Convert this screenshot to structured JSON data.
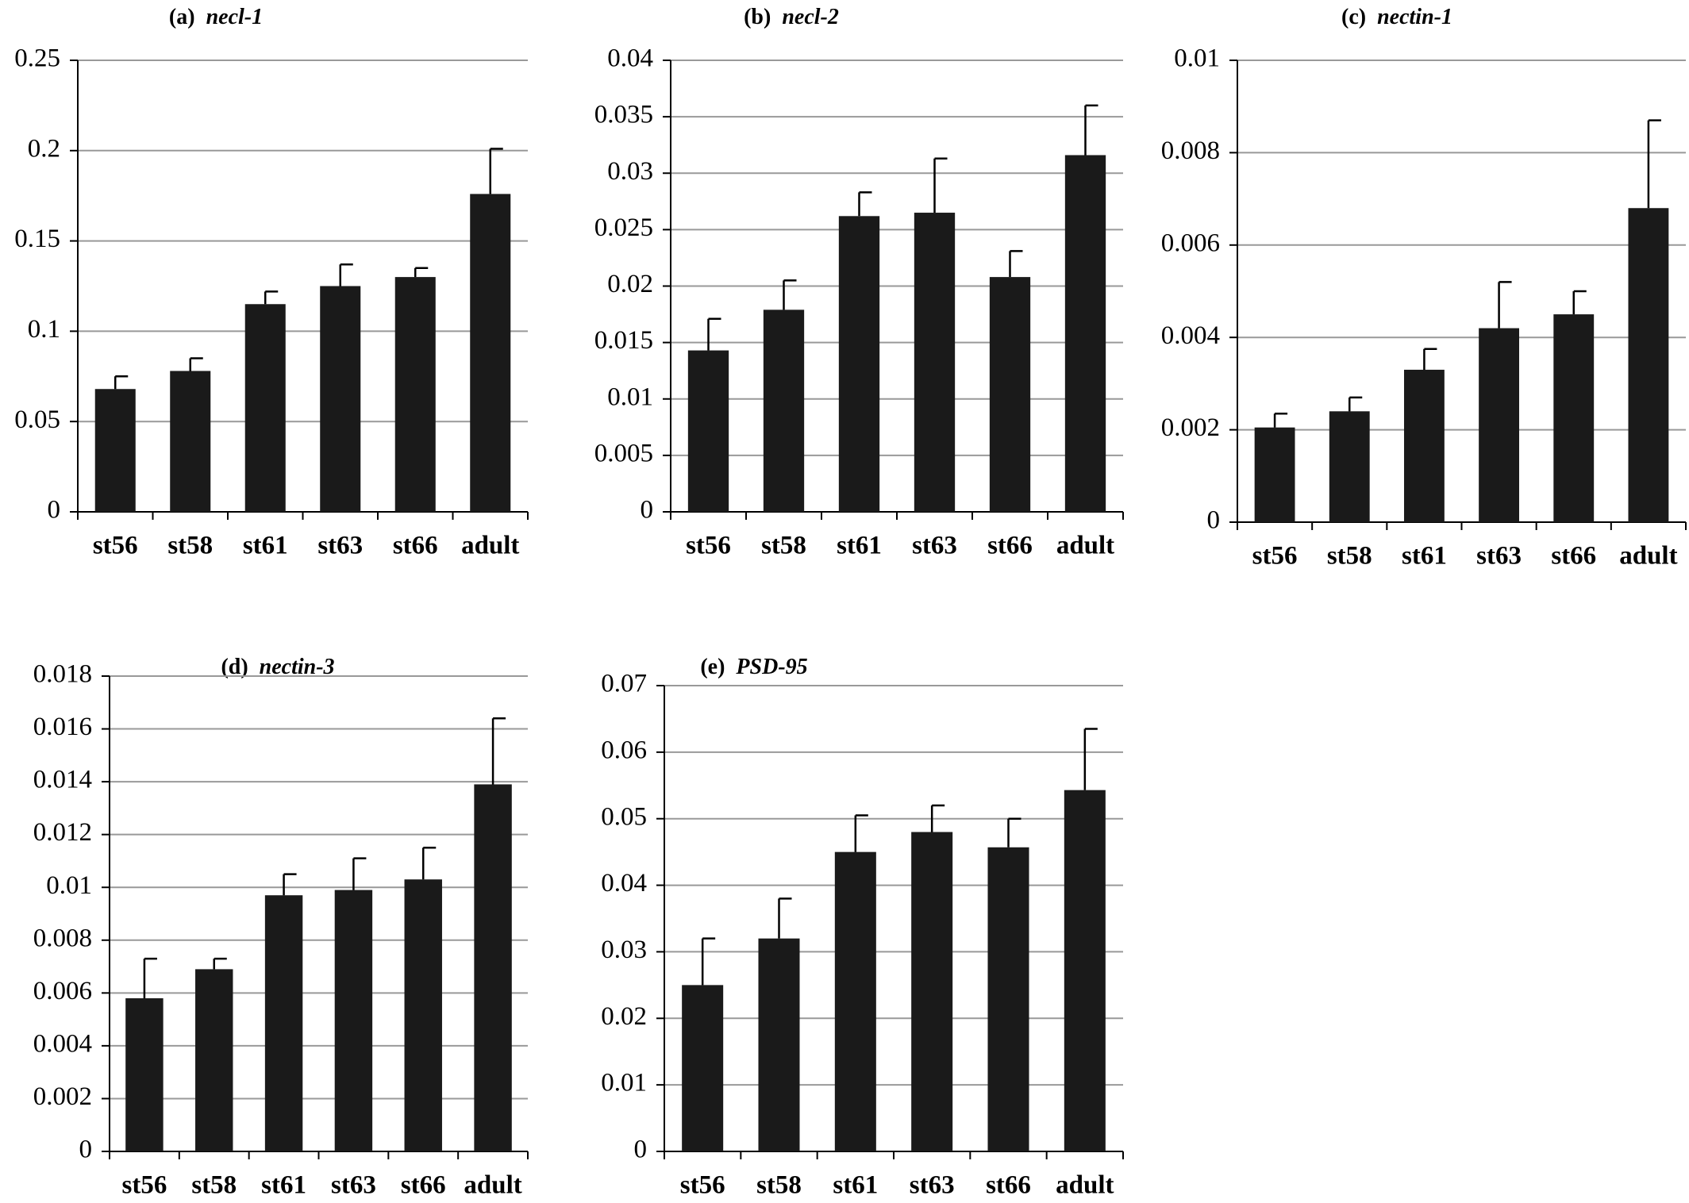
{
  "chart_data": [
    {
      "type": "bar",
      "panel": "(a)",
      "title": "necl-1",
      "categories": [
        "st56",
        "st58",
        "st61",
        "st63",
        "st66",
        "adult"
      ],
      "values": [
        0.068,
        0.078,
        0.115,
        0.125,
        0.13,
        0.176
      ],
      "errors": [
        0.007,
        0.007,
        0.007,
        0.012,
        0.005,
        0.025
      ],
      "color": "#1a1a1a",
      "ylim": [
        0,
        0.25
      ],
      "yticks": [
        0,
        0.05,
        0.1,
        0.15,
        0.2,
        0.25
      ],
      "grid": true
    },
    {
      "type": "bar",
      "panel": "(b)",
      "title": "necl-2",
      "categories": [
        "st56",
        "st58",
        "st61",
        "st63",
        "st66",
        "adult"
      ],
      "values": [
        0.0143,
        0.0179,
        0.0262,
        0.0265,
        0.0208,
        0.0316
      ],
      "errors": [
        0.0028,
        0.0026,
        0.0021,
        0.0048,
        0.0023,
        0.0044
      ],
      "color": "#1a1a1a",
      "ylim": [
        0,
        0.04
      ],
      "yticks": [
        0,
        0.005,
        0.01,
        0.015,
        0.02,
        0.025,
        0.03,
        0.035,
        0.04
      ],
      "grid": true
    },
    {
      "type": "bar",
      "panel": "(c)",
      "title": "nectin-1",
      "categories": [
        "st56",
        "st58",
        "st61",
        "st63",
        "st66",
        "adult"
      ],
      "values": [
        0.00205,
        0.0024,
        0.0033,
        0.0042,
        0.0045,
        0.0068
      ],
      "errors": [
        0.0003,
        0.0003,
        0.00045,
        0.001,
        0.0005,
        0.0019
      ],
      "color": "#1a1a1a",
      "ylim": [
        0,
        0.01
      ],
      "yticks": [
        0,
        0.002,
        0.004,
        0.006,
        0.008,
        0.01
      ],
      "grid": true
    },
    {
      "type": "bar",
      "panel": "(d)",
      "title": "nectin-3",
      "categories": [
        "st56",
        "st58",
        "st61",
        "st63",
        "st66",
        "adult"
      ],
      "values": [
        0.0058,
        0.0069,
        0.0097,
        0.0099,
        0.0103,
        0.0139
      ],
      "errors": [
        0.0015,
        0.0004,
        0.0008,
        0.0012,
        0.0012,
        0.0025
      ],
      "color": "#1a1a1a",
      "ylim": [
        0,
        0.018
      ],
      "yticks": [
        0,
        0.002,
        0.004,
        0.006,
        0.008,
        0.01,
        0.012,
        0.014,
        0.016,
        0.018
      ],
      "grid": true
    },
    {
      "type": "bar",
      "panel": "(e)",
      "title": "PSD-95",
      "categories": [
        "st56",
        "st58",
        "st61",
        "st63",
        "st66",
        "adult"
      ],
      "values": [
        0.025,
        0.032,
        0.045,
        0.048,
        0.0457,
        0.0543
      ],
      "errors": [
        0.007,
        0.006,
        0.0055,
        0.004,
        0.0043,
        0.0092
      ],
      "color": "#1a1a1a",
      "ylim": [
        0,
        0.07
      ],
      "yticks": [
        0,
        0.01,
        0.02,
        0.03,
        0.04,
        0.05,
        0.06,
        0.07
      ],
      "grid": true
    }
  ]
}
